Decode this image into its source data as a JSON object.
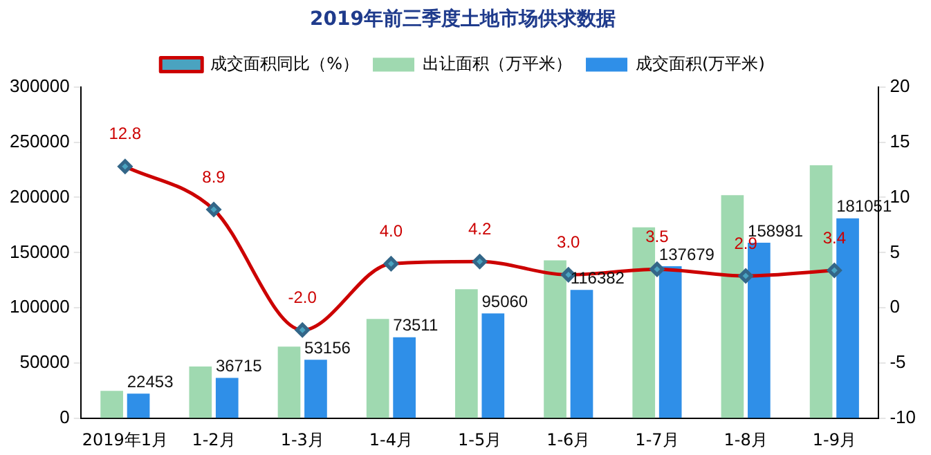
{
  "chart_data": {
    "type": "bar",
    "title": "2019年前三季度土地市场供求数据",
    "categories": [
      "2019年1月",
      "1-2月",
      "1-3月",
      "1-4月",
      "1-5月",
      "1-6月",
      "1-7月",
      "1-8月",
      "1-9月"
    ],
    "series": [
      {
        "name": "出让面积（万平米）",
        "color": "#9fd9b0",
        "values": [
          25000,
          47000,
          65000,
          90000,
          117000,
          143000,
          173000,
          202000,
          229000
        ]
      },
      {
        "name": "成交面积(万平米)",
        "color": "#2f8fe8",
        "values": [
          22453,
          36715,
          53156,
          73511,
          95060,
          116382,
          137679,
          158981,
          181051
        ],
        "value_labels": [
          "22453",
          "36715",
          "53156",
          "73511",
          "95060",
          "116382",
          "137679",
          "158981",
          "181051"
        ]
      },
      {
        "name": "成交面积同比（%）",
        "type": "line",
        "axis": "y2",
        "color": "#cc0000",
        "marker": "diamond",
        "values": [
          12.8,
          8.9,
          -2.0,
          4.0,
          4.2,
          3.0,
          3.5,
          2.9,
          3.4
        ],
        "value_labels": [
          "12.8",
          "8.9",
          "-2.0",
          "4.0",
          "4.2",
          "3.0",
          "3.5",
          "2.9",
          "3.4"
        ]
      }
    ],
    "ylim": [
      0,
      300000
    ],
    "yticks": [
      0,
      50000,
      100000,
      150000,
      200000,
      250000,
      300000
    ],
    "y2lim": [
      -10,
      20
    ],
    "y2ticks": [
      -10,
      -5,
      0,
      5,
      10,
      15,
      20
    ],
    "grid": false,
    "legend": "top"
  }
}
